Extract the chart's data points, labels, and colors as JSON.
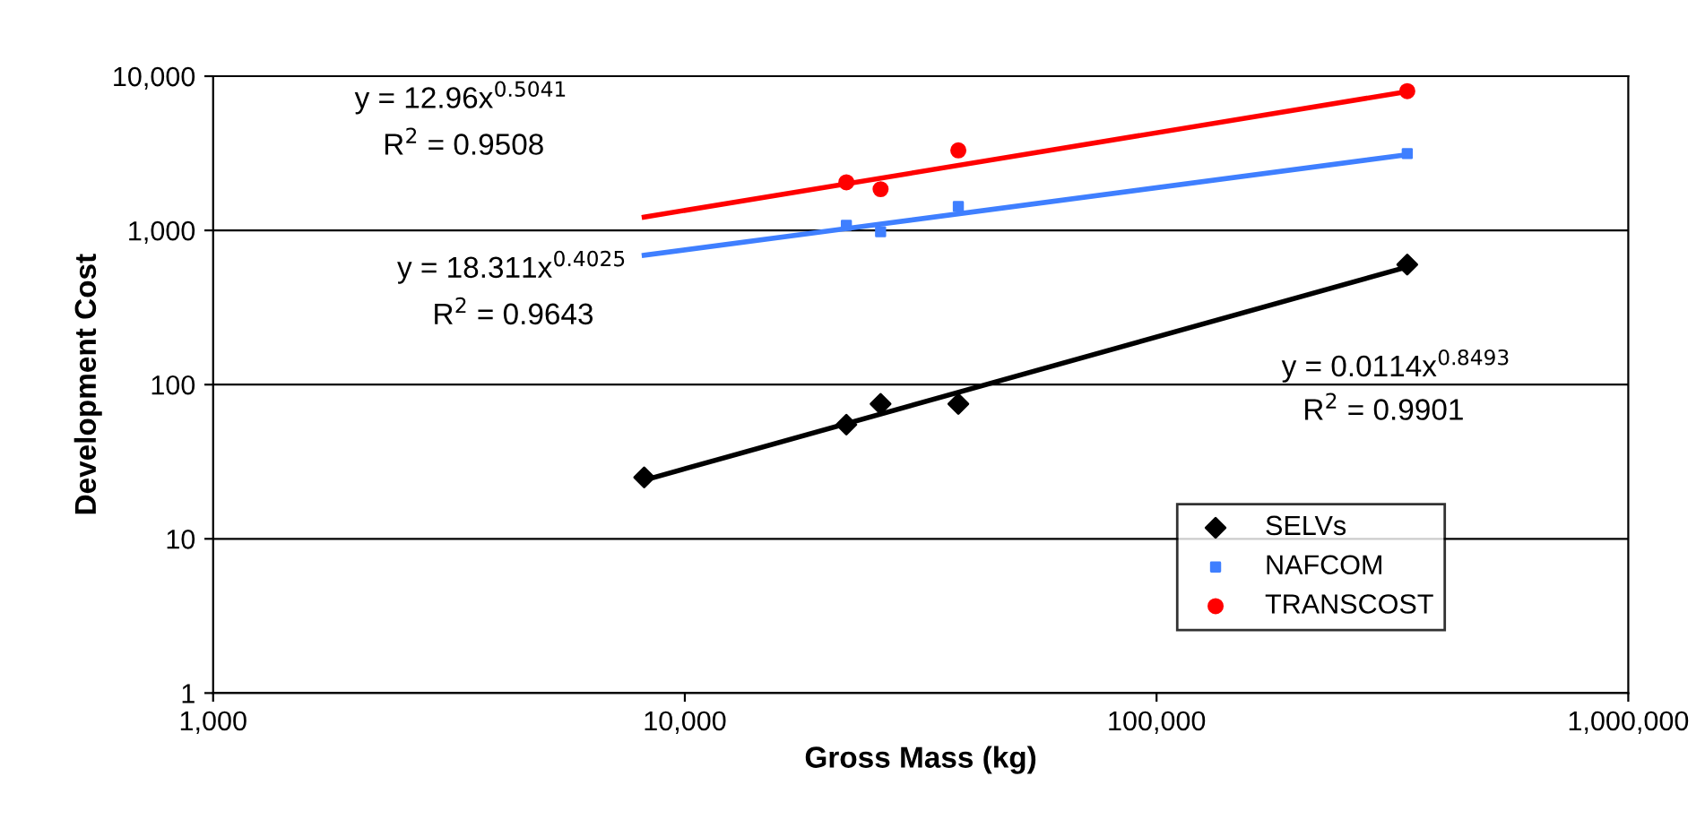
{
  "chart_data": {
    "type": "scatter",
    "xlabel": "Gross Mass (kg)",
    "ylabel": "Development Cost",
    "log": "xy",
    "xlim": [
      1000,
      1000000
    ],
    "ylim": [
      1,
      10000
    ],
    "xticks": [
      {
        "value": 1000,
        "label": "1,000"
      },
      {
        "value": 10000,
        "label": "10,000"
      },
      {
        "value": 100000,
        "label": "100,000"
      },
      {
        "value": 1000000,
        "label": "1,000,000"
      }
    ],
    "yticks": [
      1,
      10,
      100,
      {
        "value": 1000,
        "label": "1,000"
      },
      {
        "value": 10000,
        "label": "10,000"
      }
    ],
    "grid": "y",
    "legend": "bottom right",
    "series": [
      {
        "name": "SELVs",
        "color": "#000000",
        "marker": "diamond",
        "x": [
          8200,
          22000,
          26000,
          38000,
          340000
        ],
        "values": [
          25,
          55,
          75,
          75,
          600
        ]
      },
      {
        "name": "NAFCOM",
        "color": "#3f7fff",
        "marker": "square",
        "x": [
          22000,
          26000,
          38000,
          340000
        ],
        "values": [
          1080,
          980,
          1430,
          3150
        ]
      },
      {
        "name": "TRANSCOST",
        "color": "#ff0000",
        "marker": "circle",
        "x": [
          22000,
          26000,
          38000,
          340000
        ],
        "values": [
          2050,
          1850,
          3300,
          8000
        ]
      },
      {
        "type": "line",
        "color": "#000000",
        "marker": "none",
        "x": [
          8200,
          340000
        ],
        "values": [
          24,
          580
        ]
      },
      {
        "type": "line",
        "color": "#3f7fff",
        "marker": "none",
        "x": [
          8200,
          340000
        ],
        "values": [
          690,
          3100
        ]
      },
      {
        "type": "line",
        "color": "#ff0000",
        "marker": "none",
        "x": [
          8200,
          340000
        ],
        "values": [
          1220,
          7950
        ]
      }
    ],
    "annotations": [
      "y = 12.96x$^{0.5041}$",
      "R$^{2}$ = 0.9508",
      "y = 18.311x$^{0.4025}$",
      "R$^{2}$ = 0.9643",
      "y = 0.0114x$^{0.8493}$",
      "R$^{2}$ = 0.9901"
    ]
  }
}
